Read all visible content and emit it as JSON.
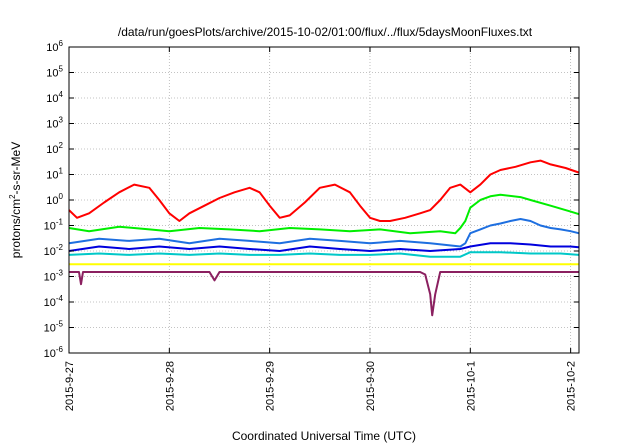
{
  "chart_data": {
    "type": "line",
    "title": "/data/run/goesPlots/archive/2015-10-02/01:00/flux/../flux/5daysMoonFluxes.txt",
    "xlabel": "Coordinated Universal Time (UTC)",
    "ylabel_base": "protons/cm",
    "ylabel_sup": "2",
    "ylabel_rest": "-s-sr-MeV",
    "y_scale": "log",
    "ylim": [
      1e-06,
      1000000.0
    ],
    "y_ticks": [
      {
        "exp": -6
      },
      {
        "exp": -5
      },
      {
        "exp": -4
      },
      {
        "exp": -3
      },
      {
        "exp": -2
      },
      {
        "exp": -1
      },
      {
        "exp": 0
      },
      {
        "exp": 1
      },
      {
        "exp": 2
      },
      {
        "exp": 3
      },
      {
        "exp": 4
      },
      {
        "exp": 5
      },
      {
        "exp": 6
      }
    ],
    "y_tick_base": "10",
    "xlim": [
      "2015-09-27",
      "2015-10-02 02:00"
    ],
    "x_ticks": [
      "2015-9-27",
      "2015-9-28",
      "2015-9-29",
      "2015-9-30",
      "2015-10-1",
      "2015-10-2"
    ],
    "grid": true,
    "series": [
      {
        "color": "#ff0000",
        "x": [
          0,
          0.08,
          0.2,
          0.35,
          0.5,
          0.65,
          0.8,
          0.9,
          1.0,
          1.1,
          1.2,
          1.35,
          1.5,
          1.65,
          1.8,
          1.9,
          2.0,
          2.1,
          2.2,
          2.35,
          2.5,
          2.65,
          2.8,
          2.9,
          3.0,
          3.1,
          3.2,
          3.35,
          3.5,
          3.6,
          3.7,
          3.8,
          3.9,
          4.0,
          4.1,
          4.2,
          4.3,
          4.45,
          4.6,
          4.7,
          4.8,
          4.95,
          5.08
        ],
        "y": [
          0.4,
          0.2,
          0.3,
          0.8,
          2,
          4,
          3,
          1,
          0.3,
          0.15,
          0.3,
          0.6,
          1.2,
          2,
          3,
          2,
          0.6,
          0.2,
          0.25,
          0.8,
          3,
          4,
          2,
          0.6,
          0.2,
          0.15,
          0.15,
          0.2,
          0.3,
          0.4,
          1,
          3,
          4,
          2,
          4,
          10,
          15,
          20,
          30,
          35,
          25,
          18,
          12
        ]
      },
      {
        "color": "#00ee00",
        "x": [
          0,
          0.2,
          0.5,
          0.8,
          1.0,
          1.3,
          1.6,
          1.9,
          2.2,
          2.5,
          2.8,
          3.1,
          3.4,
          3.7,
          3.85,
          3.9,
          3.95,
          4.0,
          4.1,
          4.2,
          4.3,
          4.5,
          4.6,
          4.8,
          5.0,
          5.08
        ],
        "y": [
          0.08,
          0.06,
          0.09,
          0.07,
          0.06,
          0.08,
          0.07,
          0.06,
          0.08,
          0.07,
          0.06,
          0.07,
          0.05,
          0.06,
          0.05,
          0.08,
          0.15,
          0.5,
          1.0,
          1.4,
          1.6,
          1.3,
          1.0,
          0.6,
          0.35,
          0.28
        ]
      },
      {
        "color": "#1e6fe0",
        "x": [
          0,
          0.3,
          0.6,
          0.9,
          1.2,
          1.5,
          1.8,
          2.1,
          2.4,
          2.7,
          3.0,
          3.3,
          3.6,
          3.9,
          3.95,
          4.0,
          4.1,
          4.2,
          4.3,
          4.4,
          4.5,
          4.6,
          4.7,
          4.8,
          4.9,
          5.0,
          5.08
        ],
        "y": [
          0.02,
          0.03,
          0.025,
          0.03,
          0.02,
          0.03,
          0.025,
          0.02,
          0.03,
          0.025,
          0.02,
          0.025,
          0.02,
          0.015,
          0.02,
          0.05,
          0.07,
          0.1,
          0.12,
          0.15,
          0.18,
          0.15,
          0.1,
          0.08,
          0.07,
          0.06,
          0.05
        ]
      },
      {
        "color": "#0000dd",
        "x": [
          0,
          0.3,
          0.6,
          0.9,
          1.2,
          1.5,
          1.8,
          2.1,
          2.4,
          2.7,
          3.0,
          3.3,
          3.6,
          3.9,
          4.0,
          4.2,
          4.4,
          4.6,
          4.8,
          5.0,
          5.08
        ],
        "y": [
          0.01,
          0.015,
          0.012,
          0.015,
          0.012,
          0.015,
          0.012,
          0.01,
          0.015,
          0.012,
          0.01,
          0.012,
          0.01,
          0.012,
          0.015,
          0.02,
          0.02,
          0.018,
          0.015,
          0.015,
          0.014
        ]
      },
      {
        "color": "#00c8c8",
        "x": [
          0,
          0.3,
          0.6,
          0.9,
          1.2,
          1.5,
          1.8,
          2.1,
          2.4,
          2.7,
          3.0,
          3.3,
          3.6,
          3.9,
          4.0,
          4.3,
          4.6,
          4.9,
          5.08
        ],
        "y": [
          0.007,
          0.008,
          0.007,
          0.008,
          0.007,
          0.008,
          0.007,
          0.007,
          0.008,
          0.007,
          0.007,
          0.008,
          0.006,
          0.006,
          0.009,
          0.009,
          0.008,
          0.008,
          0.007
        ]
      },
      {
        "color": "#ffff00",
        "x": [
          0,
          0.5,
          1.0,
          1.5,
          2.0,
          2.5,
          3.0,
          3.5,
          4.0,
          4.5,
          5.08
        ],
        "y": [
          0.003,
          0.003,
          0.003,
          0.003,
          0.003,
          0.003,
          0.003,
          0.003,
          0.003,
          0.003,
          0.003
        ]
      },
      {
        "color": "#8b2060",
        "x": [
          0,
          0.1,
          0.12,
          0.14,
          0.5,
          1.0,
          1.4,
          1.45,
          1.5,
          2.0,
          2.5,
          3.0,
          3.5,
          3.55,
          3.6,
          3.62,
          3.65,
          3.7,
          4.0,
          4.5,
          5.08
        ],
        "y": [
          0.0015,
          0.0015,
          0.0005,
          0.0015,
          0.0015,
          0.0015,
          0.0015,
          0.0007,
          0.0015,
          0.0015,
          0.0015,
          0.0015,
          0.0015,
          0.0012,
          0.0002,
          3e-05,
          0.0002,
          0.0015,
          0.0015,
          0.0015,
          0.0015
        ]
      }
    ]
  }
}
